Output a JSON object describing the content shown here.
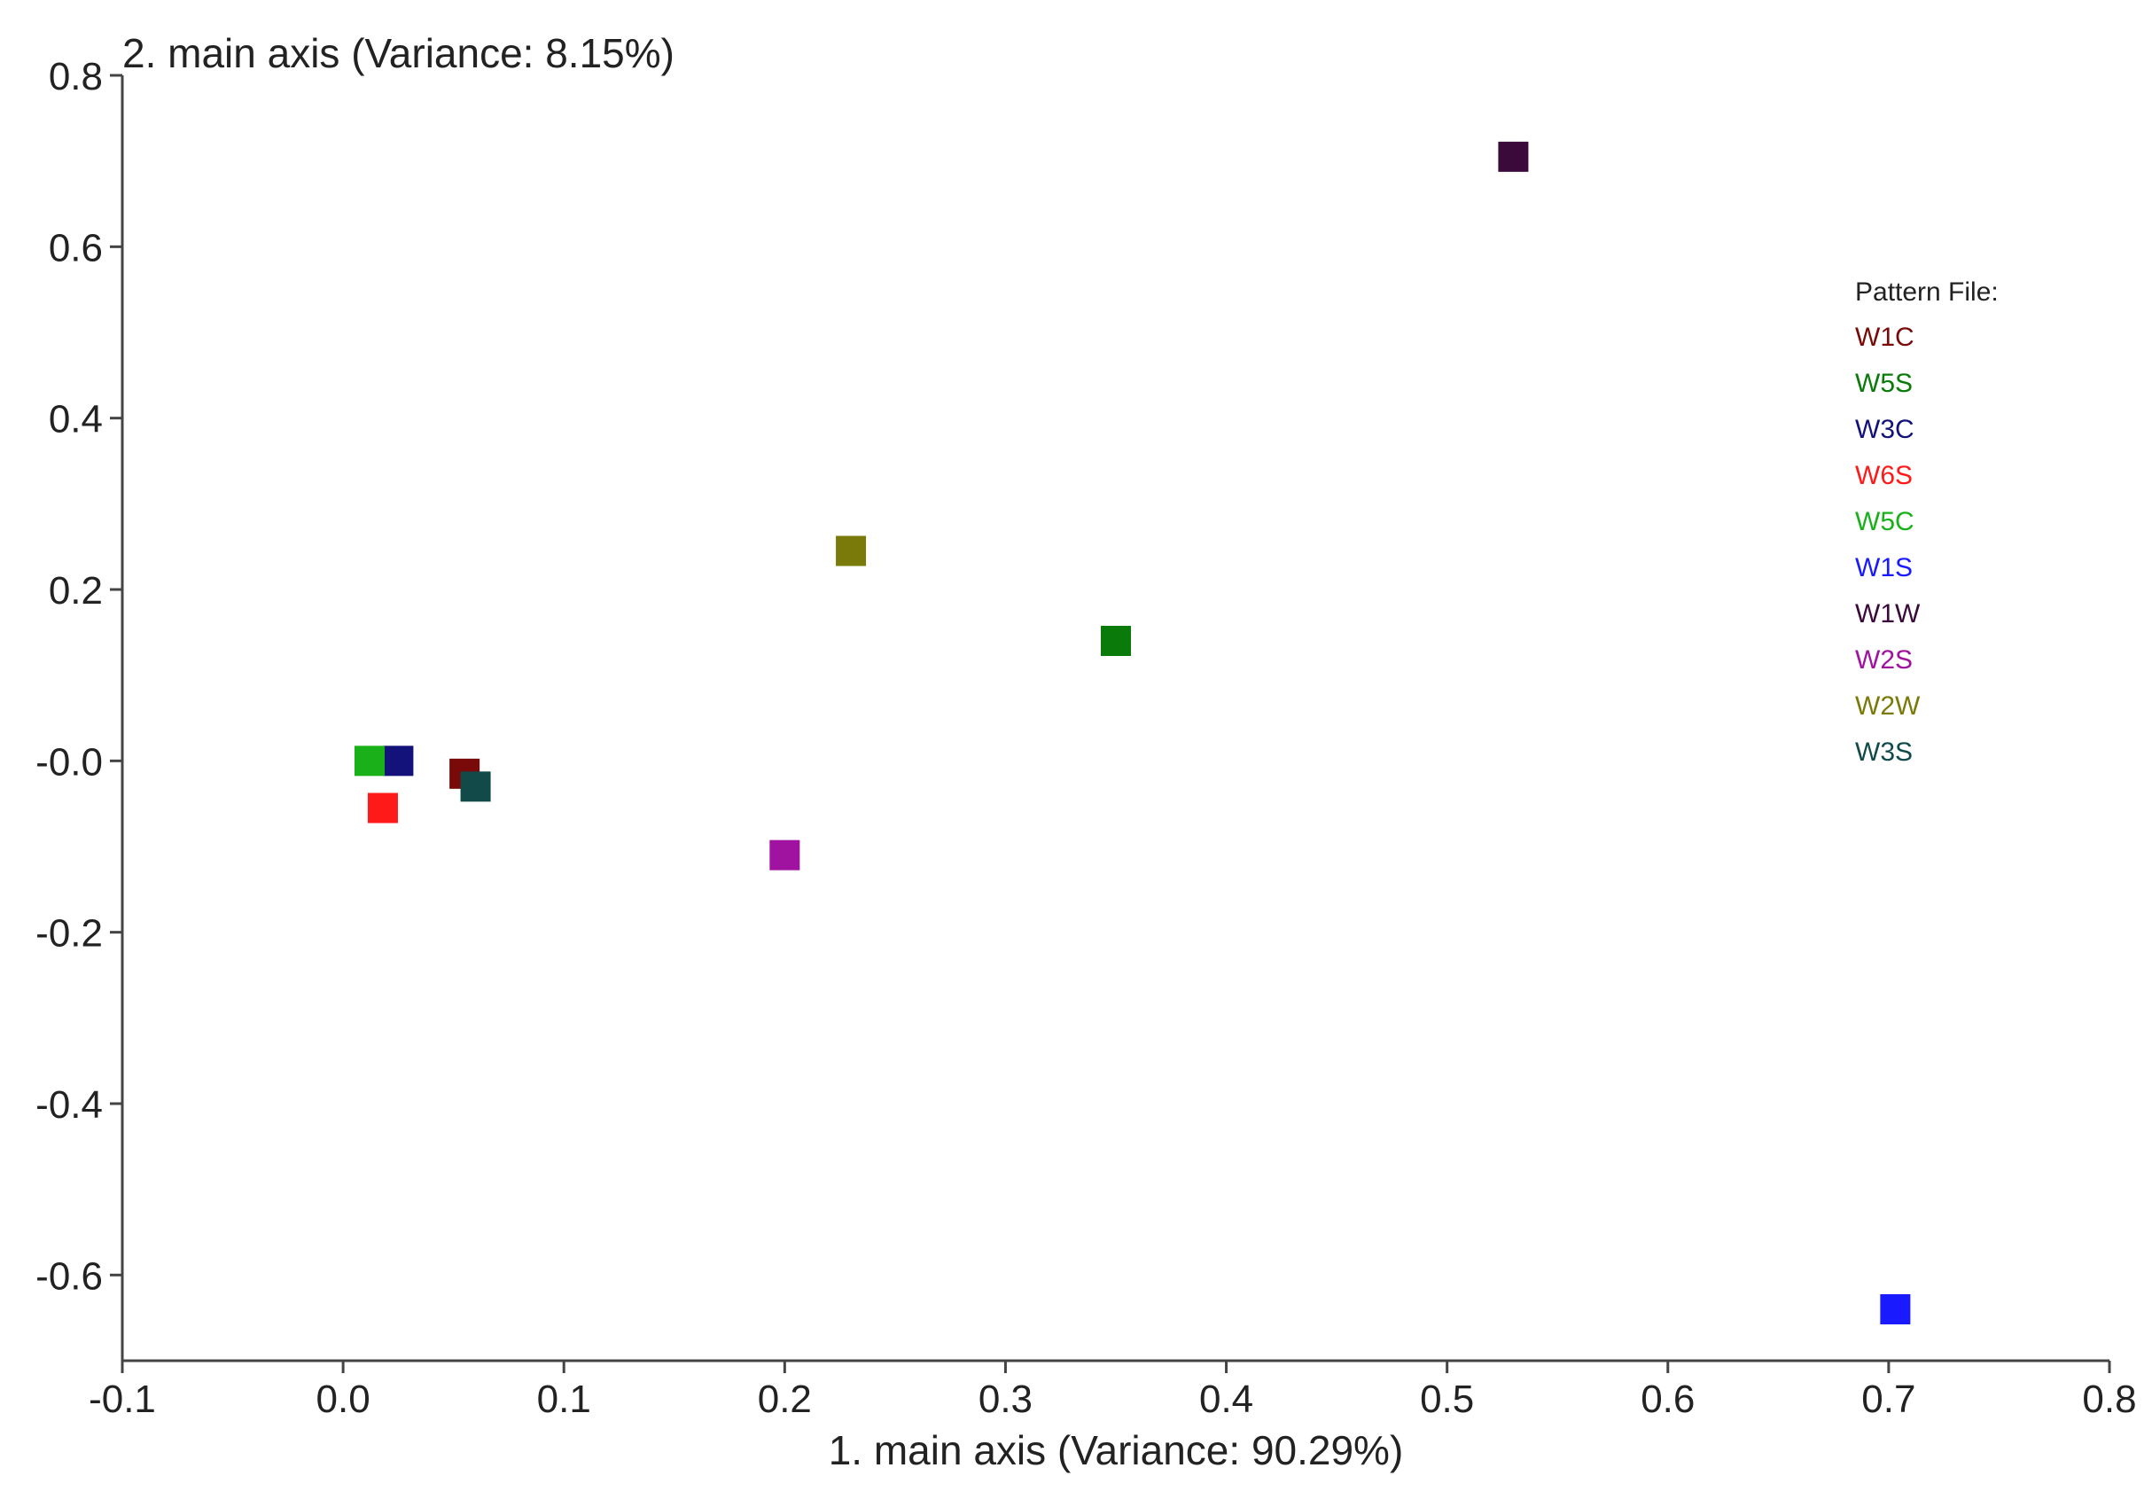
{
  "chart_data": {
    "type": "scatter",
    "title": "",
    "xlabel": "1. main axis (Variance: 90.29%)",
    "ylabel": "2. main axis (Variance: 8.15%)",
    "xlim": [
      -0.1,
      0.8
    ],
    "ylim": [
      -0.7,
      0.8
    ],
    "x_ticks": [
      -0.1,
      0.0,
      0.1,
      0.2,
      0.3,
      0.4,
      0.5,
      0.6,
      0.7,
      0.8
    ],
    "x_tick_labels": [
      "-0.1",
      "0.0",
      "0.1",
      "0.2",
      "0.3",
      "0.4",
      "0.5",
      "0.6",
      "0.7",
      "0.8"
    ],
    "y_ticks": [
      0.8,
      0.6,
      0.4,
      0.2,
      0.0,
      -0.2,
      -0.4,
      -0.6
    ],
    "y_tick_labels": [
      "0.8",
      "0.6",
      "0.4",
      "0.2",
      "-0.0",
      "-0.2",
      "-0.4",
      "-0.6"
    ],
    "grid": false,
    "marker": "square",
    "legend": {
      "title": "Pattern File:",
      "position": "right"
    },
    "series": [
      {
        "name": "W1C",
        "color": "#7a0a0a",
        "x": 0.055,
        "y": -0.015
      },
      {
        "name": "W5S",
        "color": "#0a7a0a",
        "x": 0.35,
        "y": 0.14
      },
      {
        "name": "W3C",
        "color": "#12127a",
        "x": 0.025,
        "y": 0.0
      },
      {
        "name": "W6S",
        "color": "#ff1a1a",
        "x": 0.018,
        "y": -0.055
      },
      {
        "name": "W5C",
        "color": "#1ab01a",
        "x": 0.012,
        "y": 0.0
      },
      {
        "name": "W1S",
        "color": "#1a1aff",
        "x": 0.703,
        "y": -0.64
      },
      {
        "name": "W1W",
        "color": "#3a0a3a",
        "x": 0.53,
        "y": 0.705
      },
      {
        "name": "W2S",
        "color": "#a012a0",
        "x": 0.2,
        "y": -0.11
      },
      {
        "name": "W2W",
        "color": "#7a7a0a",
        "x": 0.23,
        "y": 0.245
      },
      {
        "name": "W3S",
        "color": "#124a4a",
        "x": 0.06,
        "y": -0.03
      }
    ]
  }
}
